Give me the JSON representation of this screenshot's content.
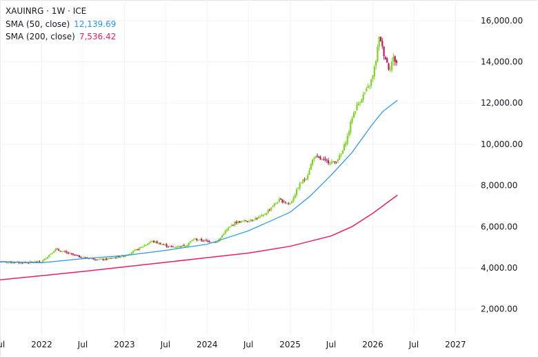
{
  "legend": {
    "symbol_line": "XAUINRG · 1W · ICE",
    "sma50_label": "SMA (50, close)",
    "sma50_value": "12,139.69",
    "sma200_label": "SMA (200, close)",
    "sma200_value": "7,536.42"
  },
  "colors": {
    "up": "#26a69a",
    "up_candle": "#7ed321",
    "down_candle": "#c2185b",
    "sma50": "#2196f3",
    "sma200": "#e91e63",
    "axis_text": "#131722",
    "grid": "#f0f3fa"
  },
  "chart_data": {
    "type": "candlestick",
    "title": "XAUINRG · 1W · ICE",
    "y_axis_side": "right",
    "y_ticks": [
      "2,000.00",
      "4,000.00",
      "6,000.00",
      "8,000.00",
      "10,000.00",
      "12,000.00",
      "14,000.00",
      "16,000.00"
    ],
    "y_tick_values": [
      2000,
      4000,
      6000,
      8000,
      10000,
      12000,
      14000,
      16000
    ],
    "ylim": [
      750,
      17000
    ],
    "x_ticks": [
      "Jul",
      "2022",
      "Jul",
      "2023",
      "Jul",
      "2024",
      "Jul",
      "2025",
      "Jul",
      "2026",
      "Jul",
      "2027"
    ],
    "x_tick_dates": [
      "2021-07-01",
      "2022-01-01",
      "2022-07-01",
      "2023-01-01",
      "2023-07-01",
      "2024-01-01",
      "2024-07-01",
      "2025-01-01",
      "2025-07-01",
      "2026-01-01",
      "2026-07-01",
      "2027-01-01"
    ],
    "xlim": [
      "2021-07-01",
      "2027-04-01"
    ],
    "price_anchors": {
      "dates": [
        "2021-07-01",
        "2021-10-01",
        "2022-01-01",
        "2022-03-01",
        "2022-05-01",
        "2022-07-01",
        "2022-10-01",
        "2023-01-01",
        "2023-03-01",
        "2023-05-01",
        "2023-08-01",
        "2023-10-01",
        "2023-11-01",
        "2024-01-01",
        "2024-02-15",
        "2024-03-15",
        "2024-05-01",
        "2024-07-01",
        "2024-09-01",
        "2024-10-15",
        "2024-11-15",
        "2025-01-01",
        "2025-02-15",
        "2025-03-15",
        "2025-04-15",
        "2025-06-01",
        "2025-07-15",
        "2025-08-15",
        "2025-09-15",
        "2025-10-01",
        "2025-10-20",
        "2025-11-15",
        "2025-12-15",
        "2026-01-01",
        "2026-01-15",
        "2026-01-25",
        "2026-02-01",
        "2026-02-15",
        "2026-03-01",
        "2026-03-15",
        "2026-04-01",
        "2026-04-20"
      ],
      "closes": [
        4300,
        4250,
        4300,
        4900,
        4700,
        4500,
        4400,
        4600,
        4900,
        5300,
        5000,
        5100,
        5400,
        5300,
        5250,
        5700,
        6200,
        6300,
        6500,
        7000,
        7300,
        7100,
        8100,
        8400,
        9400,
        9200,
        9100,
        9500,
        10500,
        11300,
        11800,
        12300,
        12800,
        13300,
        14100,
        14900,
        15300,
        14500,
        14100,
        13600,
        14200,
        13900
      ]
    },
    "series": [
      {
        "name": "SMA (50, close)",
        "last_value": 12139.69,
        "dates": [
          "2021-07-01",
          "2022-01-01",
          "2022-07-01",
          "2023-01-01",
          "2023-07-01",
          "2024-01-01",
          "2024-07-01",
          "2025-01-01",
          "2025-04-01",
          "2025-07-01",
          "2025-10-01",
          "2026-01-01",
          "2026-02-15",
          "2026-04-20"
        ],
        "values": [
          4300,
          4250,
          4450,
          4600,
          4850,
          5150,
          5800,
          6700,
          7500,
          8500,
          9600,
          11000,
          11600,
          12140
        ]
      },
      {
        "name": "SMA (200, close)",
        "last_value": 7536.42,
        "dates": [
          "2021-07-01",
          "2022-01-01",
          "2022-07-01",
          "2023-01-01",
          "2023-07-01",
          "2024-01-01",
          "2024-07-01",
          "2025-01-01",
          "2025-07-01",
          "2025-10-01",
          "2026-01-01",
          "2026-04-20"
        ],
        "values": [
          3420,
          3620,
          3830,
          4050,
          4270,
          4500,
          4720,
          5050,
          5550,
          6000,
          6650,
          7536
        ]
      }
    ]
  }
}
